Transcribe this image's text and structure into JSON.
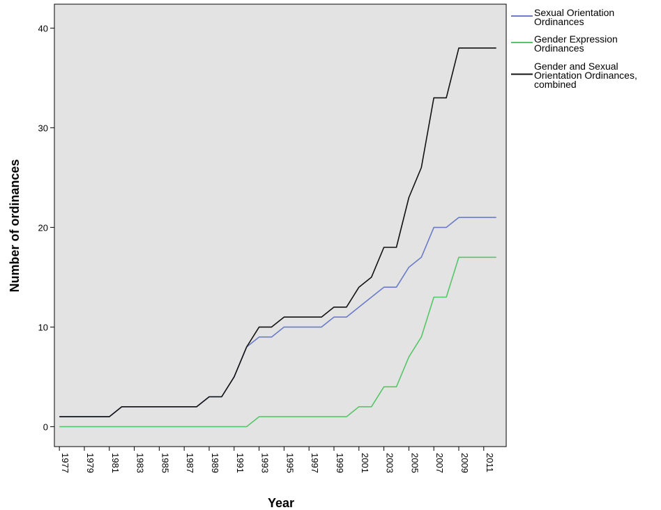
{
  "chart_data": {
    "type": "line",
    "title": "",
    "xlabel": "Year",
    "ylabel": "Number of ordinances",
    "x": [
      1977,
      1978,
      1979,
      1980,
      1981,
      1982,
      1983,
      1984,
      1985,
      1986,
      1987,
      1988,
      1989,
      1990,
      1991,
      1992,
      1993,
      1994,
      1995,
      1996,
      1997,
      1998,
      1999,
      2000,
      2001,
      2002,
      2003,
      2004,
      2005,
      2006,
      2007,
      2008,
      2009,
      2010,
      2011,
      2012
    ],
    "x_tick_labels": [
      "1977",
      "1979",
      "1981",
      "1983",
      "1985",
      "1987",
      "1989",
      "1991",
      "1993",
      "1995",
      "1997",
      "1999",
      "2001",
      "2003",
      "2005",
      "2007",
      "2009",
      "2011"
    ],
    "y_ticks": [
      0,
      10,
      20,
      30,
      40
    ],
    "xlim": [
      1976.6,
      2012.8
    ],
    "ylim": [
      -2,
      42.4
    ],
    "grid": false,
    "legend_position": "right",
    "background": "#e3e3e3",
    "series": [
      {
        "name": "Sexual Orientation Ordinances",
        "color": "#6a7bc8",
        "values": [
          1,
          1,
          1,
          1,
          1,
          2,
          2,
          2,
          2,
          2,
          2,
          2,
          3,
          3,
          5,
          8,
          9,
          9,
          10,
          10,
          10,
          10,
          11,
          11,
          12,
          13,
          14,
          14,
          16,
          17,
          20,
          20,
          21,
          21,
          21,
          21
        ]
      },
      {
        "name": "Gender Expression Ordinances",
        "color": "#55c667",
        "values": [
          0,
          0,
          0,
          0,
          0,
          0,
          0,
          0,
          0,
          0,
          0,
          0,
          0,
          0,
          0,
          0,
          1,
          1,
          1,
          1,
          1,
          1,
          1,
          1,
          2,
          2,
          4,
          4,
          7,
          9,
          13,
          13,
          17,
          17,
          17,
          17
        ]
      },
      {
        "name": "Gender and Sexual Orientation Ordinances, combined",
        "color": "#111111",
        "values": [
          1,
          1,
          1,
          1,
          1,
          2,
          2,
          2,
          2,
          2,
          2,
          2,
          3,
          3,
          5,
          8,
          10,
          10,
          11,
          11,
          11,
          11,
          12,
          12,
          14,
          15,
          18,
          18,
          23,
          26,
          33,
          33,
          38,
          38,
          38,
          38
        ]
      }
    ],
    "legend": [
      {
        "lines": [
          "Sexual Orientation",
          "Ordinances"
        ],
        "color": "#6a7bc8"
      },
      {
        "lines": [
          "Gender Expression",
          "Ordinances"
        ],
        "color": "#55c667"
      },
      {
        "lines": [
          "Gender and Sexual",
          "Orientation Ordinances,",
          "combined"
        ],
        "color": "#111111"
      }
    ]
  }
}
